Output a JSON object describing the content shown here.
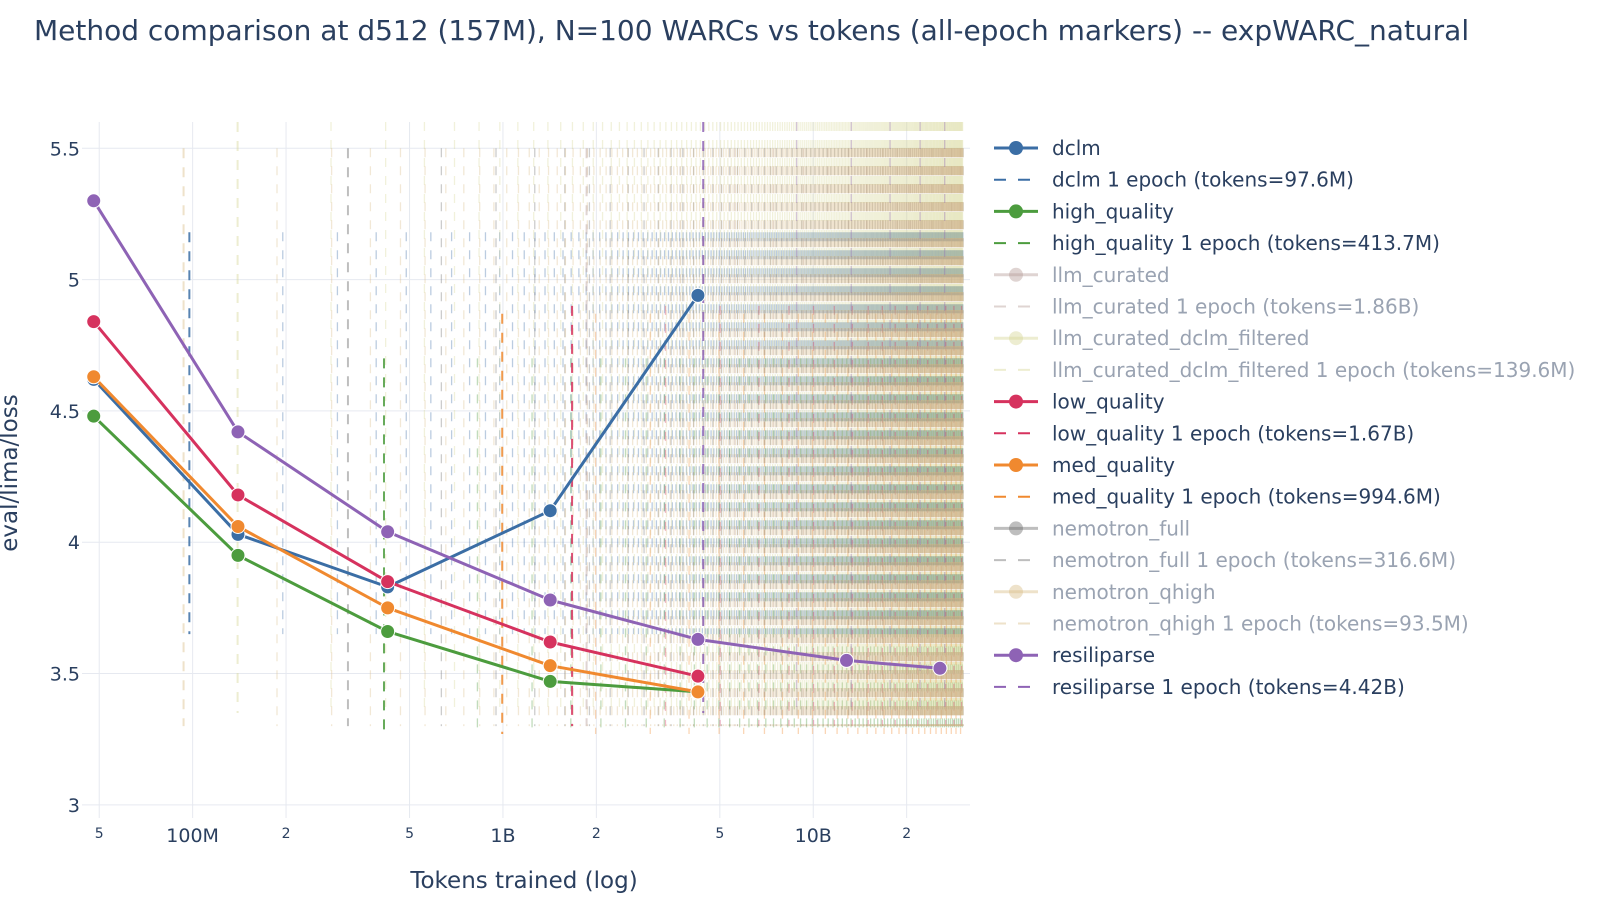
{
  "chart_data": {
    "type": "line",
    "title": "Method comparison at d512 (157M), N=100 WARCs vs tokens (all-epoch markers) -- expWARC_natural",
    "xlabel": "Tokens trained (log)",
    "ylabel": "eval/lima/loss",
    "x_scale": "log",
    "xlim": [
      44000000,
      32000000000
    ],
    "ylim": [
      2.95,
      5.6
    ],
    "grid": true,
    "legend_position": "right",
    "x_ticks": [
      {
        "value": 50000000,
        "label": "5",
        "minor": true
      },
      {
        "value": 100000000,
        "label": "100M",
        "minor": false
      },
      {
        "value": 200000000,
        "label": "2",
        "minor": true
      },
      {
        "value": 500000000,
        "label": "5",
        "minor": true
      },
      {
        "value": 1000000000,
        "label": "1B",
        "minor": false
      },
      {
        "value": 2000000000,
        "label": "2",
        "minor": true
      },
      {
        "value": 5000000000,
        "label": "5",
        "minor": true
      },
      {
        "value": 10000000000,
        "label": "10B",
        "minor": false
      },
      {
        "value": 20000000000,
        "label": "2",
        "minor": true
      }
    ],
    "y_ticks": [
      {
        "value": 3,
        "label": "3"
      },
      {
        "value": 3.5,
        "label": "3.5"
      },
      {
        "value": 4,
        "label": "4"
      },
      {
        "value": 4.5,
        "label": "4.5"
      },
      {
        "value": 5,
        "label": "5"
      },
      {
        "value": 5.5,
        "label": "5.5"
      }
    ],
    "series": [
      {
        "name": "dclm",
        "color": "#3b6ea5",
        "x": [
          48000000,
          140000000,
          425000000,
          1420000000,
          4250000000
        ],
        "y": [
          4.62,
          4.03,
          3.83,
          4.12,
          4.94
        ]
      },
      {
        "name": "high_quality",
        "color": "#4c9c3e",
        "x": [
          48000000,
          140000000,
          425000000,
          1420000000,
          4250000000
        ],
        "y": [
          4.48,
          3.95,
          3.66,
          3.47,
          3.43
        ]
      },
      {
        "name": "llm_curated",
        "color": "#b8a09c",
        "x": [],
        "y": []
      },
      {
        "name": "llm_curated_dclm_filtered",
        "color": "#d8d699",
        "x": [],
        "y": []
      },
      {
        "name": "low_quality",
        "color": "#d6325e",
        "x": [
          48000000,
          140000000,
          425000000,
          1420000000,
          4250000000
        ],
        "y": [
          4.84,
          4.18,
          3.85,
          3.62,
          3.49
        ]
      },
      {
        "name": "med_quality",
        "color": "#f0892f",
        "x": [
          48000000,
          140000000,
          425000000,
          1420000000,
          4250000000
        ],
        "y": [
          4.63,
          4.06,
          3.75,
          3.53,
          3.43
        ]
      },
      {
        "name": "nemotron_full",
        "color": "#6e6e6e",
        "x": [],
        "y": []
      },
      {
        "name": "nemotron_qhigh",
        "color": "#d9be8a",
        "x": [],
        "y": []
      },
      {
        "name": "resiliparse",
        "color": "#8e63b5",
        "x": [
          48000000,
          140000000,
          425000000,
          1420000000,
          4250000000,
          12800000000,
          25600000000
        ],
        "y": [
          5.3,
          4.42,
          4.04,
          3.78,
          3.63,
          3.55,
          3.52
        ]
      }
    ],
    "epoch_markers": [
      {
        "series": "dclm",
        "tokens": 97600000,
        "color": "#3b6ea5",
        "y_range": [
          3.65,
          5.18
        ],
        "label": "dclm 1 epoch (tokens=97.6M)",
        "legend_dimmed": false
      },
      {
        "series": "high_quality",
        "tokens": 413700000,
        "color": "#4c9c3e",
        "y_range": [
          3.27,
          4.7
        ],
        "label": "high_quality 1 epoch (tokens=413.7M)",
        "legend_dimmed": false
      },
      {
        "series": "llm_curated",
        "tokens": 1860000000,
        "color": "#b8a09c",
        "y_range": [
          3.3,
          5.5
        ],
        "label": "llm_curated 1 epoch (tokens=1.86B)",
        "legend_dimmed": true
      },
      {
        "series": "llm_curated_dclm_filtered",
        "tokens": 139600000,
        "color": "#d8d699",
        "y_range": [
          3.35,
          5.6
        ],
        "label": "llm_curated_dclm_filtered 1 epoch (tokens=139.6M)",
        "legend_dimmed": true
      },
      {
        "series": "low_quality",
        "tokens": 1670000000,
        "color": "#d6325e",
        "y_range": [
          3.3,
          4.9
        ],
        "label": "low_quality 1 epoch (tokens=1.67B)",
        "legend_dimmed": false
      },
      {
        "series": "med_quality",
        "tokens": 994600000,
        "color": "#f0892f",
        "y_range": [
          3.27,
          4.87
        ],
        "label": "med_quality 1 epoch (tokens=994.6M)",
        "legend_dimmed": false
      },
      {
        "series": "nemotron_full",
        "tokens": 316600000,
        "color": "#6e6e6e",
        "y_range": [
          3.3,
          5.5
        ],
        "label": "nemotron_full 1 epoch (tokens=316.6M)",
        "legend_dimmed": true
      },
      {
        "series": "nemotron_qhigh",
        "tokens": 93500000,
        "color": "#d9be8a",
        "y_range": [
          3.3,
          5.5
        ],
        "label": "nemotron_qhigh 1 epoch (tokens=93.5M)",
        "legend_dimmed": true
      },
      {
        "series": "resiliparse",
        "tokens": 4420000000,
        "color": "#8e63b5",
        "y_range": [
          3.35,
          5.6
        ],
        "label": "resiliparse 1 epoch (tokens=4.42B)",
        "legend_dimmed": false
      }
    ],
    "legend": [
      {
        "label": "dclm",
        "kind": "line",
        "color": "#3b6ea5",
        "dimmed": false
      },
      {
        "label": "dclm 1 epoch (tokens=97.6M)",
        "kind": "dash",
        "color": "#3b6ea5",
        "dimmed": false
      },
      {
        "label": "high_quality",
        "kind": "line",
        "color": "#4c9c3e",
        "dimmed": false
      },
      {
        "label": "high_quality 1 epoch (tokens=413.7M)",
        "kind": "dash",
        "color": "#4c9c3e",
        "dimmed": false
      },
      {
        "label": "llm_curated",
        "kind": "line",
        "color": "#b8a09c",
        "dimmed": true
      },
      {
        "label": "llm_curated 1 epoch (tokens=1.86B)",
        "kind": "dash",
        "color": "#b8a09c",
        "dimmed": true
      },
      {
        "label": "llm_curated_dclm_filtered",
        "kind": "line",
        "color": "#d8d699",
        "dimmed": true
      },
      {
        "label": "llm_curated_dclm_filtered 1 epoch (tokens=139.6M)",
        "kind": "dash",
        "color": "#d8d699",
        "dimmed": true
      },
      {
        "label": "low_quality",
        "kind": "line",
        "color": "#d6325e",
        "dimmed": false
      },
      {
        "label": "low_quality 1 epoch (tokens=1.67B)",
        "kind": "dash",
        "color": "#d6325e",
        "dimmed": false
      },
      {
        "label": "med_quality",
        "kind": "line",
        "color": "#f0892f",
        "dimmed": false
      },
      {
        "label": "med_quality 1 epoch (tokens=994.6M)",
        "kind": "dash",
        "color": "#f0892f",
        "dimmed": false
      },
      {
        "label": "nemotron_full",
        "kind": "line",
        "color": "#6e6e6e",
        "dimmed": true
      },
      {
        "label": "nemotron_full 1 epoch (tokens=316.6M)",
        "kind": "dash",
        "color": "#6e6e6e",
        "dimmed": true
      },
      {
        "label": "nemotron_qhigh",
        "kind": "line",
        "color": "#d9be8a",
        "dimmed": true
      },
      {
        "label": "nemotron_qhigh 1 epoch (tokens=93.5M)",
        "kind": "dash",
        "color": "#d9be8a",
        "dimmed": true
      },
      {
        "label": "resiliparse",
        "kind": "line",
        "color": "#8e63b5",
        "dimmed": false
      },
      {
        "label": "resiliparse 1 epoch (tokens=4.42B)",
        "kind": "dash",
        "color": "#8e63b5",
        "dimmed": false
      }
    ]
  }
}
